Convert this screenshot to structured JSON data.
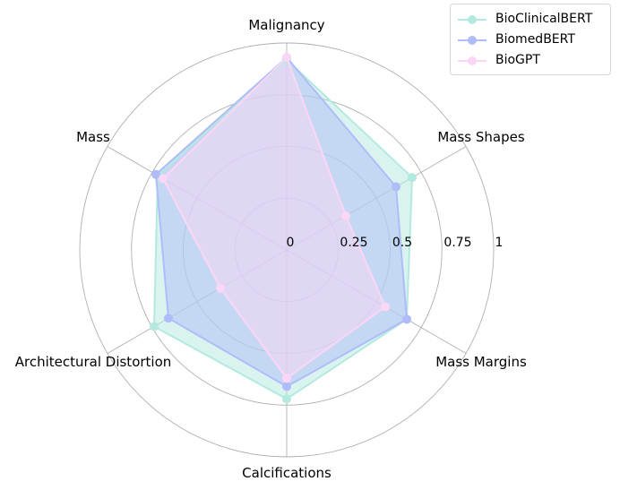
{
  "chart_data": {
    "type": "radar",
    "categories": [
      "Malignancy",
      "Mass Shapes",
      "Mass Margins",
      "Calcifications",
      "Architectural Distortion",
      "Mass"
    ],
    "radial_ticks": [
      0,
      0.25,
      0.5,
      0.75,
      1
    ],
    "radial_tick_labels": [
      "0",
      "0.25",
      "0.5",
      "0.75",
      "1"
    ],
    "rlim": [
      0,
      1
    ],
    "grid": true,
    "legend_position": "top-right",
    "series": [
      {
        "name": "BioClinicalBERT",
        "color": "#b4e9df",
        "values": [
          0.92,
          0.7,
          0.67,
          0.72,
          0.74,
          0.72
        ]
      },
      {
        "name": "BiomedBERT",
        "color": "#b0bcf9",
        "values": [
          0.93,
          0.61,
          0.67,
          0.66,
          0.66,
          0.73
        ]
      },
      {
        "name": "BioGPT",
        "color": "#fcd6f5",
        "values": [
          0.93,
          0.33,
          0.55,
          0.62,
          0.37,
          0.69
        ]
      }
    ]
  }
}
